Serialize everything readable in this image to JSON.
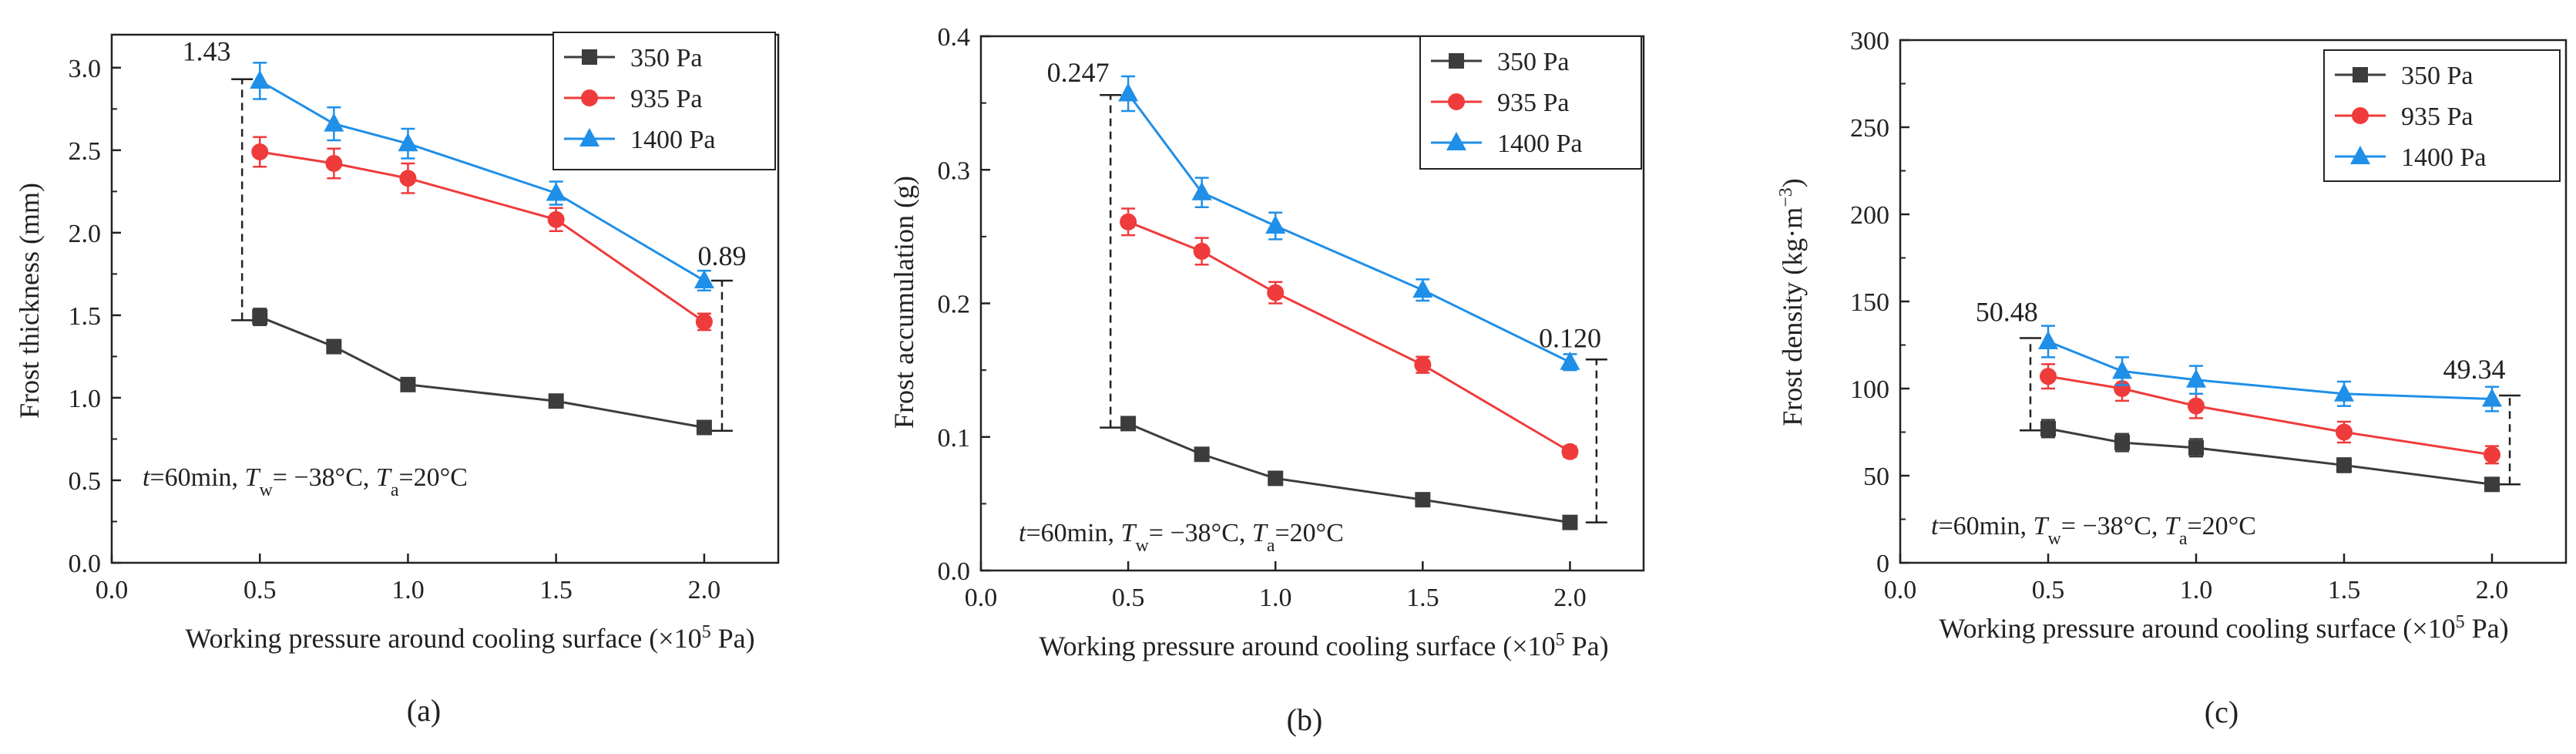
{
  "colors": {
    "s350": "#3c3c3c",
    "s935": "#ef3b3b",
    "s1400": "#1f8fe8",
    "axis": "#222222"
  },
  "chart_data": [
    {
      "type": "line",
      "panel_label": "(a)",
      "xlabel": "Working pressure around cooling surface (×10",
      "xlabel_sup": "5",
      "xlabel_end": " Pa)",
      "ylabel": "Frost thickness (mm)",
      "xlim": [
        0,
        2.25
      ],
      "ylim": [
        0,
        3.2
      ],
      "xticks": [
        0.0,
        0.5,
        1.0,
        1.5,
        2.0
      ],
      "xtick_labels": [
        "0.0",
        "0.5",
        "1.0",
        "1.5",
        "2.0"
      ],
      "yticks": [
        0.0,
        0.5,
        1.0,
        1.5,
        2.0,
        2.5,
        3.0
      ],
      "ytick_labels": [
        "0.0",
        "0.5",
        "1.0",
        "1.5",
        "2.0",
        "2.5",
        "3.0"
      ],
      "x": [
        0.5,
        0.75,
        1.0,
        1.5,
        2.0
      ],
      "series": [
        {
          "name": "350 Pa",
          "marker": "square",
          "values": [
            1.49,
            1.31,
            1.08,
            0.98,
            0.82
          ],
          "errors": [
            0.05,
            0.04,
            0.03,
            0.03,
            0.03
          ]
        },
        {
          "name": "935 Pa",
          "marker": "circle",
          "values": [
            2.49,
            2.42,
            2.33,
            2.08,
            1.46
          ],
          "errors": [
            0.09,
            0.09,
            0.09,
            0.07,
            0.05
          ]
        },
        {
          "name": "1400 Pa",
          "marker": "triangle",
          "values": [
            2.92,
            2.66,
            2.54,
            2.24,
            1.71
          ],
          "errors": [
            0.11,
            0.1,
            0.09,
            0.07,
            0.06
          ]
        }
      ],
      "annotations": [
        {
          "label": "1.43",
          "x": 0.44,
          "y_low": 1.47,
          "y_high": 2.93,
          "label_x": 0.32,
          "label_y": 3.1,
          "anchor": "middle"
        },
        {
          "label": "0.89",
          "x": 2.06,
          "y_low": 0.8,
          "y_high": 1.71,
          "label_x": 2.06,
          "label_y": 1.86,
          "anchor": "middle"
        }
      ],
      "condition": {
        "t": "t",
        "t_val": "=60min, ",
        "Tw": "T",
        "Tw_sub": "w",
        "Tw_val": "= −38°C, ",
        "Ta": "T",
        "Ta_sub": "a",
        "Ta_val": "=20°C"
      }
    },
    {
      "type": "line",
      "panel_label": "(b)",
      "xlabel": "Working pressure around cooling surface (×10",
      "xlabel_sup": "5",
      "xlabel_end": " Pa)",
      "ylabel": "Frost accumulation (g)",
      "xlim": [
        0,
        2.25
      ],
      "ylim": [
        0,
        0.4
      ],
      "xticks": [
        0.0,
        0.5,
        1.0,
        1.5,
        2.0
      ],
      "xtick_labels": [
        "0.0",
        "0.5",
        "1.0",
        "1.5",
        "2.0"
      ],
      "yticks": [
        0.0,
        0.1,
        0.2,
        0.3,
        0.4
      ],
      "ytick_labels": [
        "0.0",
        "0.1",
        "0.2",
        "0.3",
        "0.4"
      ],
      "x": [
        0.5,
        0.75,
        1.0,
        1.5,
        2.0
      ],
      "series": [
        {
          "name": "350 Pa",
          "marker": "square",
          "values": [
            0.11,
            0.087,
            0.069,
            0.053,
            0.036
          ],
          "errors": [
            0.003,
            0.003,
            0.003,
            0.003,
            0.003
          ]
        },
        {
          "name": "935 Pa",
          "marker": "circle",
          "values": [
            0.261,
            0.239,
            0.208,
            0.154,
            0.089
          ],
          "errors": [
            0.01,
            0.01,
            0.008,
            0.006,
            0.004
          ]
        },
        {
          "name": "1400 Pa",
          "marker": "triangle",
          "values": [
            0.357,
            0.283,
            0.258,
            0.21,
            0.156
          ],
          "errors": [
            0.013,
            0.011,
            0.01,
            0.008,
            0.006
          ]
        }
      ],
      "annotations": [
        {
          "label": "0.247",
          "x": 0.44,
          "y_low": 0.107,
          "y_high": 0.356,
          "label_x": 0.33,
          "label_y": 0.373,
          "anchor": "middle"
        },
        {
          "label": "0.120",
          "x": 2.09,
          "y_low": 0.036,
          "y_high": 0.158,
          "label_x": 2.0,
          "label_y": 0.174,
          "anchor": "middle"
        }
      ],
      "condition": {
        "t": "t",
        "t_val": "=60min, ",
        "Tw": "T",
        "Tw_sub": "w",
        "Tw_val": "= −38°C, ",
        "Ta": "T",
        "Ta_sub": "a",
        "Ta_val": "=20°C"
      }
    },
    {
      "type": "line",
      "panel_label": "(c)",
      "xlabel": "Working pressure around cooling surface (×10",
      "xlabel_sup": "5",
      "xlabel_end": " Pa)",
      "ylabel": "Frost density (kg·m",
      "ylabel_sup": "−3",
      "ylabel_end": ")",
      "xlim": [
        0,
        2.25
      ],
      "ylim": [
        0,
        300
      ],
      "xticks": [
        0.0,
        0.5,
        1.0,
        1.5,
        2.0
      ],
      "xtick_labels": [
        "0.0",
        "0.5",
        "1.0",
        "1.5",
        "2.0"
      ],
      "yticks": [
        0,
        50,
        100,
        150,
        200,
        250,
        300
      ],
      "ytick_labels": [
        "0",
        "50",
        "100",
        "150",
        "200",
        "250",
        "300"
      ],
      "x": [
        0.5,
        0.75,
        1.0,
        1.5,
        2.0
      ],
      "series": [
        {
          "name": "350 Pa",
          "marker": "square",
          "values": [
            77,
            69,
            66,
            56,
            45
          ],
          "errors": [
            5,
            5,
            5,
            4,
            3
          ]
        },
        {
          "name": "935 Pa",
          "marker": "circle",
          "values": [
            107,
            100,
            90,
            75,
            62
          ],
          "errors": [
            7,
            7,
            7,
            6,
            5
          ]
        },
        {
          "name": "1400 Pa",
          "marker": "triangle",
          "values": [
            127,
            110,
            105,
            97,
            94
          ],
          "errors": [
            9,
            8,
            8,
            7,
            7
          ]
        }
      ],
      "annotations": [
        {
          "label": "50.48",
          "x": 0.44,
          "y_low": 76,
          "y_high": 129,
          "label_x": 0.36,
          "label_y": 144,
          "anchor": "middle"
        },
        {
          "label": "49.34",
          "x": 2.06,
          "y_low": 45,
          "y_high": 96,
          "label_x": 1.94,
          "label_y": 111,
          "anchor": "middle"
        }
      ],
      "condition": {
        "t": "t",
        "t_val": "=60min, ",
        "Tw": "T",
        "Tw_sub": "w",
        "Tw_val": "= −38°C, ",
        "Ta": "T",
        "Ta_sub": "a",
        "Ta_val": "=20°C"
      }
    }
  ]
}
